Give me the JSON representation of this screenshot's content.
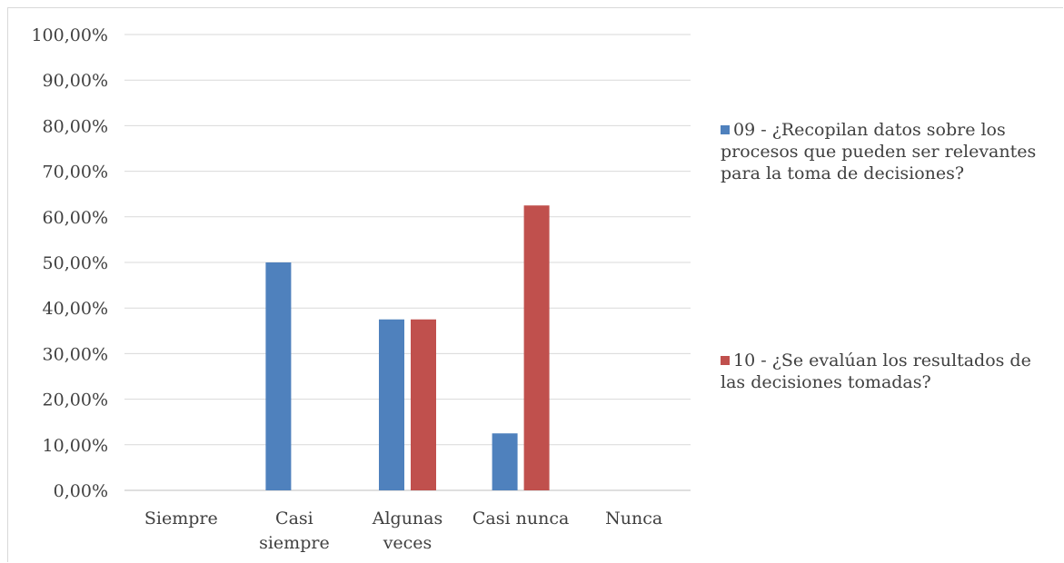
{
  "chart_data": {
    "type": "bar",
    "categories": [
      "Siempre",
      "Casi siempre",
      "Algunas veces",
      "Casi nunca",
      "Nunca"
    ],
    "category_lines": [
      [
        "Siempre"
      ],
      [
        "Casi",
        "siempre"
      ],
      [
        "Algunas",
        "veces"
      ],
      [
        "Casi nunca"
      ],
      [
        "Nunca"
      ]
    ],
    "ylim": [
      0,
      100
    ],
    "yticks": [
      "0,00%",
      "10,00%",
      "20,00%",
      "30,00%",
      "40,00%",
      "50,00%",
      "60,00%",
      "70,00%",
      "80,00%",
      "90,00%",
      "100,00%"
    ],
    "grid": true,
    "legend_position": "right",
    "series": [
      {
        "name": "09 - ¿Recopilan datos sobre los procesos que pueden ser relevantes para la toma de decisiones?",
        "color": "#4f81bd",
        "values": [
          0,
          50,
          37.5,
          12.5,
          0
        ]
      },
      {
        "name": "10 - ¿Se evalúan los resultados de las decisiones tomadas?",
        "color": "#c0504d",
        "values": [
          0,
          0,
          37.5,
          62.5,
          0
        ]
      }
    ]
  }
}
